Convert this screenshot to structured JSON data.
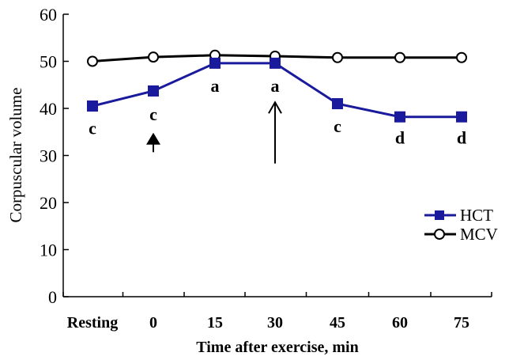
{
  "chart_data": {
    "type": "line",
    "xlabel": "Time after exercise, min",
    "ylabel": "Corpuscular  volume",
    "categories": [
      "Resting",
      "0",
      "15",
      "30",
      "45",
      "60",
      "75"
    ],
    "ylim": [
      0,
      60
    ],
    "yticks": [
      "0",
      "10",
      "20",
      "30",
      "40",
      "50",
      "60"
    ],
    "grid": false,
    "legend_position": "right",
    "series": [
      {
        "name": "HCT",
        "values": [
          40.5,
          43.7,
          49.6,
          49.6,
          41.0,
          38.2,
          38.2
        ],
        "color": "#1a1a9c",
        "marker": "filled-square"
      },
      {
        "name": "MCV",
        "values": [
          50.0,
          50.9,
          51.3,
          51.1,
          50.8,
          50.8,
          50.8
        ],
        "color": "#000000",
        "marker": "open-circle"
      }
    ],
    "annotations": [
      {
        "category_index": 0,
        "text": "c",
        "y": 34.5
      },
      {
        "category_index": 1,
        "text": "c",
        "y": 37.5
      },
      {
        "category_index": 2,
        "text": "a",
        "y": 43.5
      },
      {
        "category_index": 3,
        "text": "a",
        "y": 43.5
      },
      {
        "category_index": 4,
        "text": "c",
        "y": 35.0
      },
      {
        "category_index": 5,
        "text": "d",
        "y": 32.5
      },
      {
        "category_index": 6,
        "text": "d",
        "y": 32.5
      }
    ],
    "arrows": [
      {
        "category_index": 1,
        "y_from": 30.7,
        "y_to": 34.5,
        "style": "short-filled"
      },
      {
        "category_index": 3,
        "y_from": 28.3,
        "y_to": 41.3,
        "style": "long-open"
      }
    ]
  }
}
